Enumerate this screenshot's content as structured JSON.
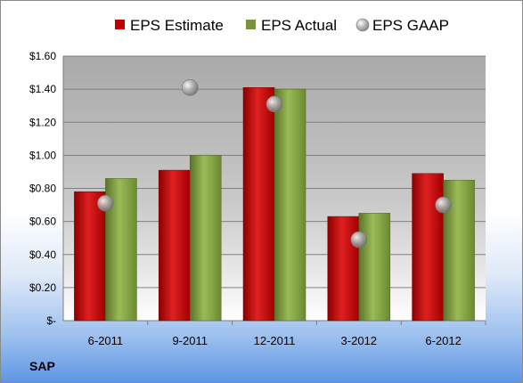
{
  "chart_data": {
    "type": "bar",
    "categories": [
      "6-2011",
      "9-2011",
      "12-2011",
      "3-2012",
      "6-2012"
    ],
    "series": [
      {
        "name": "EPS Estimate",
        "kind": "bar",
        "color": "#c00000",
        "values": [
          0.78,
          0.91,
          1.41,
          0.63,
          0.89
        ]
      },
      {
        "name": "EPS Actual",
        "kind": "bar",
        "color": "#77933c",
        "values": [
          0.86,
          1.0,
          1.4,
          0.65,
          0.85
        ]
      },
      {
        "name": "EPS GAAP",
        "kind": "marker",
        "color": "#a6a6a6",
        "values": [
          0.71,
          1.41,
          1.31,
          0.49,
          0.7
        ]
      }
    ],
    "ylim": [
      0,
      1.6
    ],
    "yticks": [
      0,
      0.2,
      0.4,
      0.6,
      0.8,
      1.0,
      1.2,
      1.4,
      1.6
    ],
    "ytick_labels": [
      "$-",
      "$0.20",
      "$0.40",
      "$0.60",
      "$0.80",
      "$1.00",
      "$1.20",
      "$1.40",
      "$1.60"
    ],
    "grid": true,
    "legend_position": "top",
    "company": "SAP"
  }
}
